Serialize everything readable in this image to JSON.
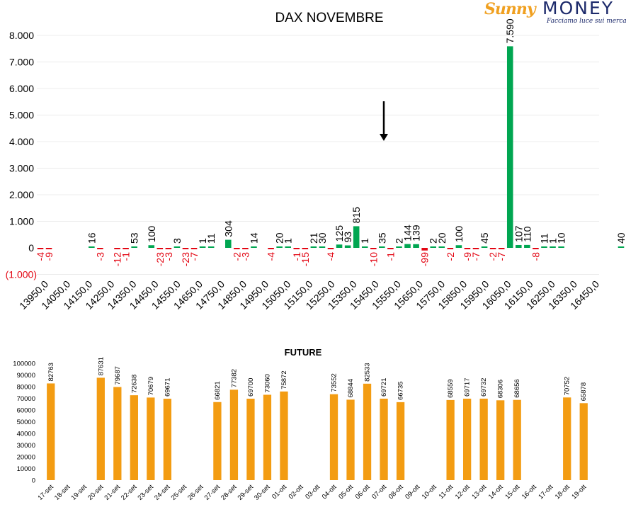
{
  "brand": {
    "name_part1": "Sunny",
    "name_part2": "MONEY",
    "tagline": "Facciamo luce sui mercati"
  },
  "chart_data": [
    {
      "type": "bar",
      "title": "DAX NOVEMBRE",
      "ylim": [
        -1000,
        8000
      ],
      "y_ticks": [
        "(1.000)",
        "0",
        "1.000",
        "2.000",
        "3.000",
        "4.000",
        "5.000",
        "6.000",
        "7.000",
        "8.000"
      ],
      "y_tick_values": [
        -1000,
        0,
        1000,
        2000,
        3000,
        4000,
        5000,
        6000,
        7000,
        8000
      ],
      "x_tick_labels": [
        "13950,0",
        "14050,0",
        "14150,0",
        "14250,0",
        "14350,0",
        "14450,0",
        "14550,0",
        "14650,0",
        "14750,0",
        "14850,0",
        "14950,0",
        "15050,0",
        "15150,0",
        "15250,0",
        "15350,0",
        "15450,0",
        "15550,0",
        "15650,0",
        "15750,0",
        "15850,0",
        "15950,0",
        "16050,0",
        "16150,0",
        "16250,0",
        "16350,0",
        "16450,0"
      ],
      "x_min": 13950,
      "x_max": 16450,
      "bars": [
        {
          "x": 13950,
          "v": -4
        },
        {
          "x": 14000,
          "v": -9
        },
        {
          "x": 14250,
          "v": 16
        },
        {
          "x": 14300,
          "v": -3
        },
        {
          "x": 14400,
          "v": -12
        },
        {
          "x": 14450,
          "v": -1
        },
        {
          "x": 14500,
          "v": 53
        },
        {
          "x": 14600,
          "v": 100
        },
        {
          "x": 14650,
          "v": -23
        },
        {
          "x": 14700,
          "v": -3
        },
        {
          "x": 14750,
          "v": 3
        },
        {
          "x": 14800,
          "v": -23
        },
        {
          "x": 14850,
          "v": -7
        },
        {
          "x": 14900,
          "v": 1
        },
        {
          "x": 14950,
          "v": 11
        },
        {
          "x": 15050,
          "v": 304
        },
        {
          "x": 15100,
          "v": -2
        },
        {
          "x": 15150,
          "v": -3
        },
        {
          "x": 15200,
          "v": 14
        },
        {
          "x": 15300,
          "v": -4
        },
        {
          "x": 15350,
          "v": 20
        },
        {
          "x": 15400,
          "v": 1
        },
        {
          "x": 15450,
          "v": -1
        },
        {
          "x": 15500,
          "v": -15
        },
        {
          "x": 15550,
          "v": 21
        },
        {
          "x": 15600,
          "v": 30
        },
        {
          "x": 15650,
          "v": -4
        },
        {
          "x": 15700,
          "v": 125
        },
        {
          "x": 15750,
          "v": 93
        },
        {
          "x": 15800,
          "v": 815
        },
        {
          "x": 15850,
          "v": 1
        },
        {
          "x": 15900,
          "v": -10
        },
        {
          "x": 15950,
          "v": 35
        },
        {
          "x": 16000,
          "v": -1
        },
        {
          "x": 16050,
          "v": 2
        },
        {
          "x": 16100,
          "v": 144
        },
        {
          "x": 16150,
          "v": 139
        },
        {
          "x": 16200,
          "v": -99
        },
        {
          "x": 16250,
          "v": 2
        },
        {
          "x": 16300,
          "v": 20
        },
        {
          "x": 16350,
          "v": -2
        },
        {
          "x": 16400,
          "v": 100
        },
        {
          "x": 16450,
          "v": -9
        },
        {
          "x": 16500,
          "v": -7
        },
        {
          "x": 16550,
          "v": 45
        },
        {
          "x": 16600,
          "v": -2
        },
        {
          "x": 16650,
          "v": -7
        },
        {
          "x": 16700,
          "v": 7590
        },
        {
          "x": 16750,
          "v": 107
        },
        {
          "x": 16800,
          "v": 110
        },
        {
          "x": 16850,
          "v": -8
        },
        {
          "x": 16900,
          "v": 11
        },
        {
          "x": 16950,
          "v": 1
        },
        {
          "x": 17000,
          "v": 10
        },
        {
          "x": 17350,
          "v": 40
        }
      ],
      "bar_labels": {
        "7590": "7.590"
      },
      "colors": {
        "positive": "#00a651",
        "negative": "#e30613",
        "negative_label": "#e30613",
        "axis_text": "#000000"
      },
      "grid": true,
      "annotation": "down-arrow"
    },
    {
      "type": "bar",
      "title": "FUTURE",
      "ylim": [
        0,
        100000
      ],
      "y_ticks": [
        "0",
        "10000",
        "20000",
        "30000",
        "40000",
        "50000",
        "60000",
        "70000",
        "80000",
        "90000",
        "100000"
      ],
      "categories": [
        "17-set",
        "18-set",
        "19-set",
        "20-set",
        "21-set",
        "22-set",
        "23-set",
        "24-set",
        "25-set",
        "26-set",
        "27-set",
        "28-set",
        "29-set",
        "30-set",
        "01-ott",
        "02-ott",
        "03-ott",
        "04-ott",
        "05-ott",
        "06-ott",
        "07-ott",
        "08-ott",
        "09-ott",
        "10-ott",
        "11-ott",
        "12-ott",
        "13-ott",
        "14-ott",
        "15-ott",
        "16-ott",
        "17-ott",
        "18-ott",
        "19-ott"
      ],
      "values": [
        82763,
        null,
        null,
        87631,
        79687,
        72638,
        70679,
        69671,
        null,
        null,
        66821,
        77382,
        69700,
        73060,
        75872,
        null,
        null,
        73552,
        68844,
        82533,
        69721,
        66735,
        null,
        null,
        68559,
        69717,
        69732,
        68306,
        68656,
        null,
        null,
        70752,
        65878
      ],
      "colors": {
        "bar": "#f39c12"
      },
      "grid": false
    }
  ]
}
